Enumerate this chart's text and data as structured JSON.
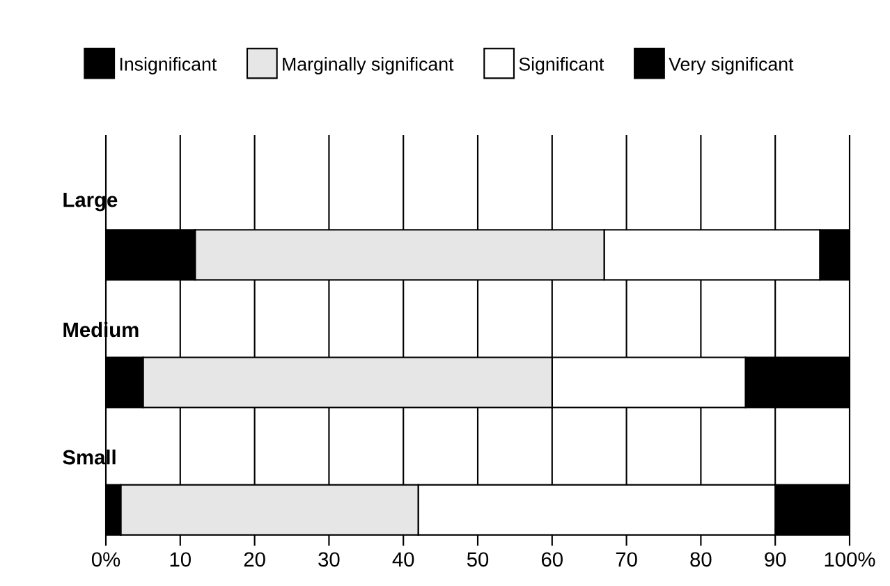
{
  "chart_data": {
    "type": "bar",
    "orientation": "horizontal",
    "stacked": true,
    "categories": [
      "Large",
      "Medium",
      "Small"
    ],
    "series": [
      {
        "name": "Insignificant",
        "color": "#000000",
        "values": [
          12,
          5,
          2
        ]
      },
      {
        "name": "Marginally significant",
        "color": "#e6e6e6",
        "values": [
          55,
          55,
          40
        ]
      },
      {
        "name": "Significant",
        "color": "#ffffff",
        "values": [
          29,
          26,
          48
        ]
      },
      {
        "name": "Very significant",
        "color": "#000000",
        "values": [
          4,
          14,
          10
        ]
      }
    ],
    "xlim": [
      0,
      100
    ],
    "xticks": [
      {
        "value": 0,
        "label": "0%"
      },
      10,
      20,
      30,
      40,
      50,
      60,
      70,
      80,
      90,
      {
        "value": 100,
        "label": "100%"
      }
    ],
    "grid": "x",
    "legend": "top"
  }
}
